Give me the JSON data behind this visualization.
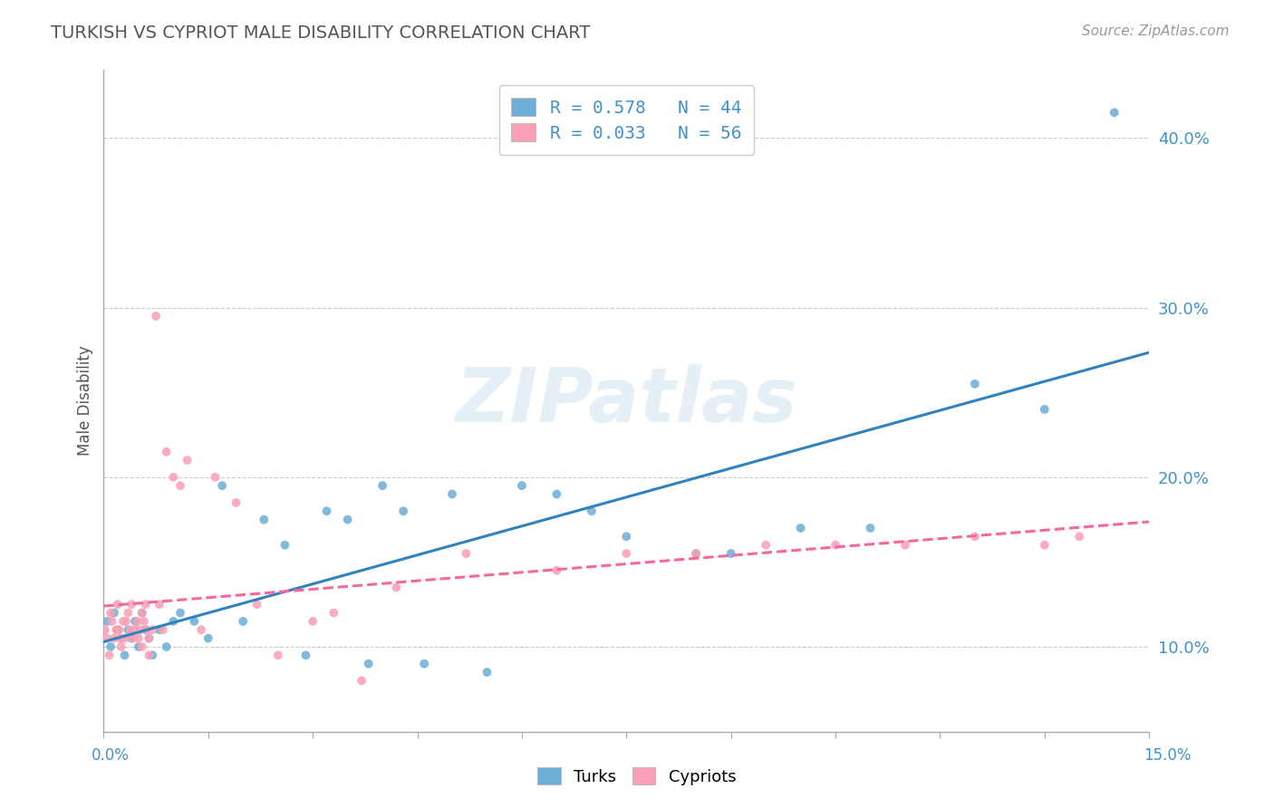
{
  "title": "TURKISH VS CYPRIOT MALE DISABILITY CORRELATION CHART",
  "source": "Source: ZipAtlas.com",
  "ylabel": "Male Disability",
  "xlim": [
    0.0,
    15.0
  ],
  "ylim": [
    5.0,
    44.0
  ],
  "yticks": [
    10.0,
    20.0,
    30.0,
    40.0
  ],
  "xticks": [
    0.0,
    1.5,
    3.0,
    4.5,
    6.0,
    7.5,
    9.0,
    10.5,
    12.0,
    13.5,
    15.0
  ],
  "turks_color": "#6baed6",
  "cypriots_color": "#fa9fb5",
  "turks_line_color": "#3182bd",
  "cypriots_line_color": "#f768a1",
  "turks_label": "Turks",
  "cypriots_label": "Cypriots",
  "background_color": "#ffffff",
  "grid_color": "#cccccc",
  "watermark": "ZIPatlas",
  "turks_x": [
    0.05,
    0.1,
    0.15,
    0.2,
    0.25,
    0.3,
    0.35,
    0.4,
    0.45,
    0.5,
    0.55,
    0.6,
    0.65,
    0.7,
    0.8,
    0.9,
    1.0,
    1.1,
    1.3,
    1.5,
    1.7,
    2.0,
    2.3,
    2.6,
    2.9,
    3.2,
    3.5,
    3.8,
    4.0,
    4.3,
    4.6,
    5.0,
    5.5,
    6.0,
    6.5,
    7.0,
    7.5,
    8.5,
    9.0,
    10.0,
    11.0,
    12.5,
    13.5,
    14.5
  ],
  "turks_y": [
    11.5,
    10.0,
    12.0,
    11.0,
    10.5,
    9.5,
    11.0,
    10.5,
    11.5,
    10.0,
    12.0,
    11.0,
    10.5,
    9.5,
    11.0,
    10.0,
    11.5,
    12.0,
    11.5,
    10.5,
    19.5,
    11.5,
    17.5,
    16.0,
    9.5,
    18.0,
    17.5,
    9.0,
    19.5,
    18.0,
    9.0,
    19.0,
    8.5,
    19.5,
    19.0,
    18.0,
    16.5,
    15.5,
    15.5,
    17.0,
    17.0,
    25.5,
    24.0,
    41.5
  ],
  "cypriots_x": [
    0.02,
    0.05,
    0.08,
    0.1,
    0.12,
    0.15,
    0.18,
    0.2,
    0.22,
    0.25,
    0.28,
    0.3,
    0.32,
    0.35,
    0.38,
    0.4,
    0.42,
    0.45,
    0.48,
    0.5,
    0.52,
    0.55,
    0.58,
    0.6,
    0.62,
    0.65,
    0.7,
    0.75,
    0.8,
    0.85,
    0.9,
    1.0,
    1.1,
    1.2,
    1.4,
    1.6,
    1.9,
    2.2,
    2.5,
    3.0,
    3.3,
    3.7,
    4.2,
    5.2,
    6.5,
    7.5,
    8.5,
    9.5,
    10.5,
    11.5,
    12.5,
    13.5,
    14.0,
    0.25,
    0.55,
    0.65
  ],
  "cypriots_y": [
    11.0,
    10.5,
    9.5,
    12.0,
    11.5,
    10.5,
    11.0,
    12.5,
    11.0,
    10.0,
    11.5,
    10.5,
    11.5,
    12.0,
    11.0,
    12.5,
    10.5,
    11.0,
    11.5,
    10.5,
    11.0,
    12.0,
    11.5,
    12.5,
    11.0,
    10.5,
    11.0,
    29.5,
    12.5,
    11.0,
    21.5,
    20.0,
    19.5,
    21.0,
    11.0,
    20.0,
    18.5,
    12.5,
    9.5,
    11.5,
    12.0,
    8.0,
    13.5,
    15.5,
    14.5,
    15.5,
    15.5,
    16.0,
    16.0,
    16.0,
    16.5,
    16.0,
    16.5,
    10.5,
    10.0,
    9.5
  ]
}
